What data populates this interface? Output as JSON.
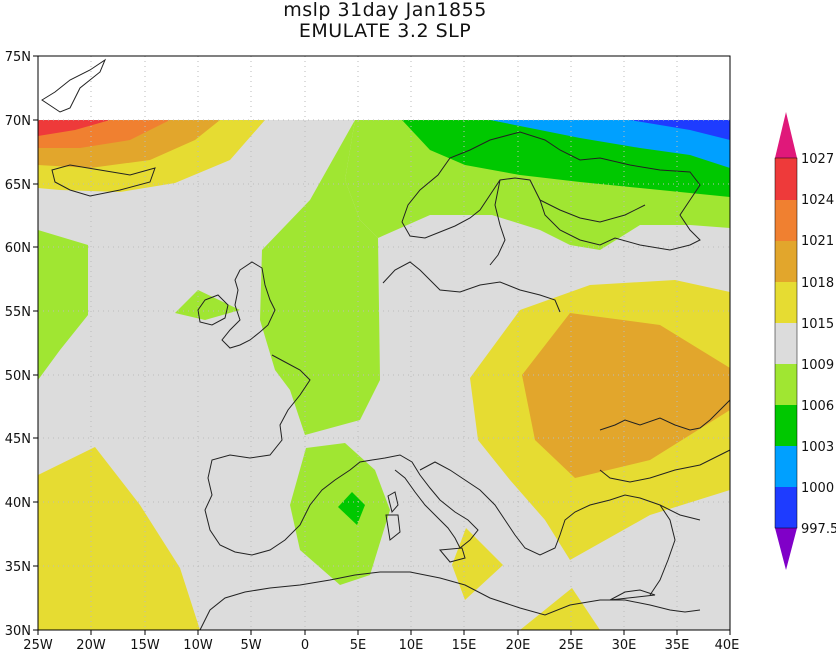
{
  "title": {
    "line1": "mslp 31day Jan1855",
    "line2": "EMULATE 3.2 SLP"
  },
  "axes": {
    "lat_labels": [
      "75N",
      "70N",
      "65N",
      "60N",
      "55N",
      "50N",
      "45N",
      "40N",
      "35N",
      "30N"
    ],
    "lon_labels": [
      "25W",
      "20W",
      "15W",
      "10W",
      "5W",
      "0",
      "5E",
      "10E",
      "15E",
      "20E",
      "25E",
      "30E",
      "35E",
      "40E"
    ]
  },
  "colorbar": {
    "labels": [
      "1027",
      "1024",
      "1021",
      "1018",
      "1015",
      "1009",
      "1006",
      "1003",
      "1000",
      "997.5"
    ],
    "colors": {
      "top_arrow": "#e0187a",
      "c1027": "#ee3a3a",
      "c1024": "#f08030",
      "c1021": "#e2a62c",
      "c1018": "#e6dc32",
      "c1015": "#dcdcdc",
      "c1009": "#a0e632",
      "c1006": "#00c800",
      "c1003": "#00a0ff",
      "c1000": "#1e3cff",
      "bottom_arrow": "#8000c8"
    }
  }
}
